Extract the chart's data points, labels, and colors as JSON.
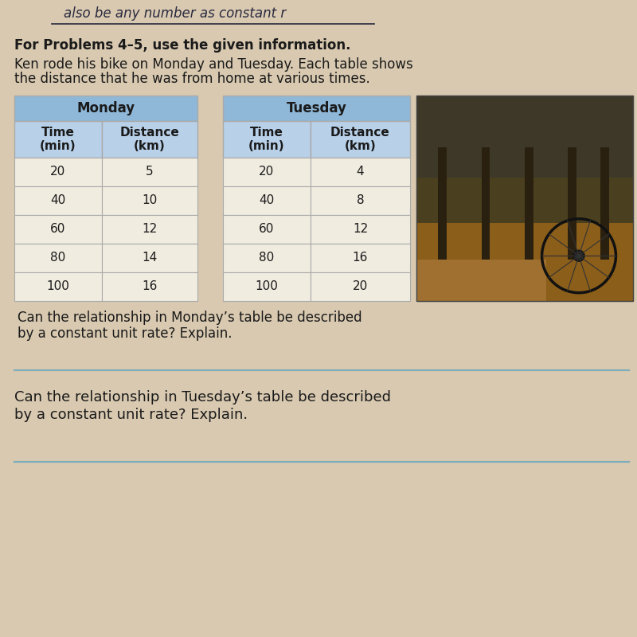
{
  "background_color": "#d8c9b0",
  "page_color": "#e8dcc8",
  "handwritten_top": "also be any number as constant r",
  "problems_text": "For Problems 4–5, use the given information.",
  "description_line1": "Ken rode his bike on Monday and Tuesday. Each table shows",
  "description_line2": "the distance that he was from home at various times.",
  "monday_header": "Monday",
  "tuesday_header": "Tuesday",
  "col_header1": "Time\n(min)",
  "col_header2": "Distance\n(km)",
  "monday_data": [
    [
      20,
      5
    ],
    [
      40,
      10
    ],
    [
      60,
      12
    ],
    [
      80,
      14
    ],
    [
      100,
      16
    ]
  ],
  "tuesday_data": [
    [
      20,
      4
    ],
    [
      40,
      8
    ],
    [
      60,
      12
    ],
    [
      80,
      16
    ],
    [
      100,
      20
    ]
  ],
  "header_bg_color": "#8fb8d8",
  "subheader_bg_color": "#b8d0e8",
  "cell_bg_color": "#f0ece0",
  "cell_border_color": "#aaaaaa",
  "question1_line1": "Can the relationship in Monday’s table be described",
  "question1_line2": "by a constant unit rate? Explain.",
  "question2_line1": "Can the relationship in Tuesday’s table be described",
  "question2_line2": "by a constant unit rate? Explain.",
  "answer_line_color": "#7aacbc",
  "text_color": "#1a1a1a",
  "handwritten_color": "#2a2a40",
  "font_size_body": 12,
  "font_size_table": 11,
  "font_size_header_table": 11,
  "font_size_handwritten": 12
}
